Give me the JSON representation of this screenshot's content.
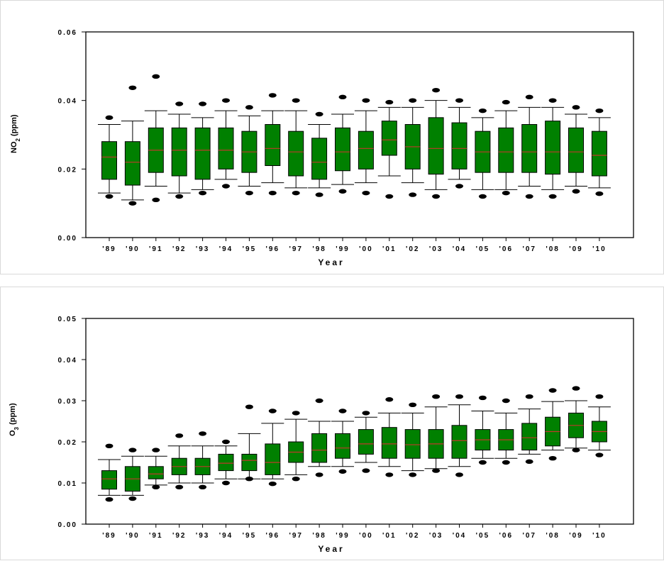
{
  "charts": [
    {
      "id": "no2",
      "ylabel_main": "NO",
      "ylabel_sub": "2",
      "ylabel_unit": " (ppm)"
    },
    {
      "id": "o3",
      "ylabel_main": "O",
      "ylabel_sub": "3",
      "ylabel_unit": " (ppm)"
    }
  ],
  "colors": {
    "box_fill": "#008000",
    "median_line": "#c0392b",
    "outlier": "#000000",
    "axis": "#000000"
  },
  "chart_data": [
    {
      "type": "box",
      "title": "",
      "xlabel": "Year",
      "ylabel": "NO2 (ppm)",
      "ylim": [
        0,
        0.06
      ],
      "yticks": [
        "0.00",
        "0.02",
        "0.04",
        "0.06"
      ],
      "categories": [
        "'89",
        "'90",
        "'91",
        "'92",
        "'93",
        "'94",
        "'95",
        "'96",
        "'97",
        "'98",
        "'99",
        "'00",
        "'01",
        "'02",
        "'03",
        "'04",
        "'05",
        "'06",
        "'07",
        "'08",
        "'09",
        "'10"
      ],
      "boxes": [
        {
          "whisker_low": 0.013,
          "q1": 0.017,
          "median": 0.0235,
          "q3": 0.028,
          "whisker_high": 0.033,
          "outliers": [
            0.035,
            0.012
          ]
        },
        {
          "whisker_low": 0.011,
          "q1": 0.0153,
          "median": 0.022,
          "q3": 0.028,
          "whisker_high": 0.034,
          "outliers": [
            0.0437,
            0.01
          ]
        },
        {
          "whisker_low": 0.015,
          "q1": 0.019,
          "median": 0.0255,
          "q3": 0.032,
          "whisker_high": 0.037,
          "outliers": [
            0.047,
            0.011
          ]
        },
        {
          "whisker_low": 0.013,
          "q1": 0.018,
          "median": 0.0255,
          "q3": 0.032,
          "whisker_high": 0.036,
          "outliers": [
            0.039,
            0.012
          ]
        },
        {
          "whisker_low": 0.014,
          "q1": 0.017,
          "median": 0.0255,
          "q3": 0.032,
          "whisker_high": 0.035,
          "outliers": [
            0.039,
            0.013
          ]
        },
        {
          "whisker_low": 0.017,
          "q1": 0.02,
          "median": 0.0255,
          "q3": 0.032,
          "whisker_high": 0.037,
          "outliers": [
            0.04,
            0.015
          ]
        },
        {
          "whisker_low": 0.015,
          "q1": 0.019,
          "median": 0.025,
          "q3": 0.031,
          "whisker_high": 0.0355,
          "outliers": [
            0.038,
            0.013
          ]
        },
        {
          "whisker_low": 0.016,
          "q1": 0.021,
          "median": 0.026,
          "q3": 0.033,
          "whisker_high": 0.037,
          "outliers": [
            0.0415,
            0.013
          ]
        },
        {
          "whisker_low": 0.0145,
          "q1": 0.018,
          "median": 0.025,
          "q3": 0.031,
          "whisker_high": 0.037,
          "outliers": [
            0.04,
            0.013
          ]
        },
        {
          "whisker_low": 0.0145,
          "q1": 0.017,
          "median": 0.022,
          "q3": 0.029,
          "whisker_high": 0.033,
          "outliers": [
            0.036,
            0.0125
          ]
        },
        {
          "whisker_low": 0.0155,
          "q1": 0.0195,
          "median": 0.025,
          "q3": 0.032,
          "whisker_high": 0.036,
          "outliers": [
            0.041,
            0.0135
          ]
        },
        {
          "whisker_low": 0.016,
          "q1": 0.02,
          "median": 0.026,
          "q3": 0.031,
          "whisker_high": 0.037,
          "outliers": [
            0.04,
            0.013
          ]
        },
        {
          "whisker_low": 0.018,
          "q1": 0.024,
          "median": 0.0285,
          "q3": 0.034,
          "whisker_high": 0.038,
          "outliers": [
            0.0395,
            0.012
          ]
        },
        {
          "whisker_low": 0.016,
          "q1": 0.02,
          "median": 0.0265,
          "q3": 0.033,
          "whisker_high": 0.038,
          "outliers": [
            0.04,
            0.0125
          ]
        },
        {
          "whisker_low": 0.014,
          "q1": 0.0185,
          "median": 0.026,
          "q3": 0.035,
          "whisker_high": 0.04,
          "outliers": [
            0.043,
            0.012
          ]
        },
        {
          "whisker_low": 0.017,
          "q1": 0.02,
          "median": 0.026,
          "q3": 0.0335,
          "whisker_high": 0.038,
          "outliers": [
            0.04,
            0.015
          ]
        },
        {
          "whisker_low": 0.014,
          "q1": 0.019,
          "median": 0.025,
          "q3": 0.031,
          "whisker_high": 0.035,
          "outliers": [
            0.037,
            0.012
          ]
        },
        {
          "whisker_low": 0.014,
          "q1": 0.019,
          "median": 0.025,
          "q3": 0.032,
          "whisker_high": 0.037,
          "outliers": [
            0.0395,
            0.013
          ]
        },
        {
          "whisker_low": 0.015,
          "q1": 0.019,
          "median": 0.025,
          "q3": 0.033,
          "whisker_high": 0.038,
          "outliers": [
            0.041,
            0.012
          ]
        },
        {
          "whisker_low": 0.014,
          "q1": 0.0185,
          "median": 0.025,
          "q3": 0.034,
          "whisker_high": 0.038,
          "outliers": [
            0.04,
            0.012
          ]
        },
        {
          "whisker_low": 0.015,
          "q1": 0.019,
          "median": 0.025,
          "q3": 0.032,
          "whisker_high": 0.036,
          "outliers": [
            0.038,
            0.0135
          ]
        },
        {
          "whisker_low": 0.0145,
          "q1": 0.018,
          "median": 0.024,
          "q3": 0.031,
          "whisker_high": 0.035,
          "outliers": [
            0.037,
            0.0128
          ]
        }
      ],
      "grid": false,
      "legend": "none"
    },
    {
      "type": "box",
      "title": "",
      "xlabel": "Year",
      "ylabel": "O3 (ppm)",
      "ylim": [
        0,
        0.05
      ],
      "yticks": [
        "0.00",
        "0.01",
        "0.02",
        "0.03",
        "0.04",
        "0.05"
      ],
      "categories": [
        "'89",
        "'90",
        "'91",
        "'92",
        "'93",
        "'94",
        "'95",
        "'96",
        "'97",
        "'98",
        "'99",
        "'00",
        "'01",
        "'02",
        "'03",
        "'04",
        "'05",
        "'06",
        "'07",
        "'08",
        "'09",
        "'10"
      ],
      "boxes": [
        {
          "whisker_low": 0.007,
          "q1": 0.0085,
          "median": 0.011,
          "q3": 0.013,
          "whisker_high": 0.0157,
          "outliers": [
            0.019,
            0.006
          ]
        },
        {
          "whisker_low": 0.007,
          "q1": 0.008,
          "median": 0.011,
          "q3": 0.014,
          "whisker_high": 0.0165,
          "outliers": [
            0.018,
            0.0062
          ]
        },
        {
          "whisker_low": 0.0095,
          "q1": 0.011,
          "median": 0.0122,
          "q3": 0.014,
          "whisker_high": 0.0165,
          "outliers": [
            0.018,
            0.009
          ]
        },
        {
          "whisker_low": 0.01,
          "q1": 0.012,
          "median": 0.014,
          "q3": 0.016,
          "whisker_high": 0.019,
          "outliers": [
            0.0215,
            0.009
          ]
        },
        {
          "whisker_low": 0.01,
          "q1": 0.012,
          "median": 0.014,
          "q3": 0.016,
          "whisker_high": 0.019,
          "outliers": [
            0.022,
            0.009
          ]
        },
        {
          "whisker_low": 0.011,
          "q1": 0.013,
          "median": 0.0148,
          "q3": 0.017,
          "whisker_high": 0.019,
          "outliers": [
            0.02,
            0.01
          ]
        },
        {
          "whisker_low": 0.011,
          "q1": 0.013,
          "median": 0.0155,
          "q3": 0.017,
          "whisker_high": 0.022,
          "outliers": [
            0.0285,
            0.011
          ]
        },
        {
          "whisker_low": 0.011,
          "q1": 0.012,
          "median": 0.015,
          "q3": 0.0195,
          "whisker_high": 0.0245,
          "outliers": [
            0.0275,
            0.0098
          ]
        },
        {
          "whisker_low": 0.012,
          "q1": 0.015,
          "median": 0.0175,
          "q3": 0.02,
          "whisker_high": 0.0255,
          "outliers": [
            0.027,
            0.011
          ]
        },
        {
          "whisker_low": 0.014,
          "q1": 0.015,
          "median": 0.018,
          "q3": 0.022,
          "whisker_high": 0.025,
          "outliers": [
            0.03,
            0.012
          ]
        },
        {
          "whisker_low": 0.014,
          "q1": 0.016,
          "median": 0.0185,
          "q3": 0.022,
          "whisker_high": 0.025,
          "outliers": [
            0.0275,
            0.0128
          ]
        },
        {
          "whisker_low": 0.015,
          "q1": 0.017,
          "median": 0.0195,
          "q3": 0.023,
          "whisker_high": 0.026,
          "outliers": [
            0.027,
            0.013
          ]
        },
        {
          "whisker_low": 0.014,
          "q1": 0.016,
          "median": 0.0195,
          "q3": 0.0235,
          "whisker_high": 0.027,
          "outliers": [
            0.0303,
            0.012
          ]
        },
        {
          "whisker_low": 0.013,
          "q1": 0.016,
          "median": 0.0193,
          "q3": 0.023,
          "whisker_high": 0.027,
          "outliers": [
            0.029,
            0.012
          ]
        },
        {
          "whisker_low": 0.0135,
          "q1": 0.016,
          "median": 0.0195,
          "q3": 0.023,
          "whisker_high": 0.0285,
          "outliers": [
            0.031,
            0.013
          ]
        },
        {
          "whisker_low": 0.014,
          "q1": 0.016,
          "median": 0.0203,
          "q3": 0.024,
          "whisker_high": 0.029,
          "outliers": [
            0.031,
            0.012
          ]
        },
        {
          "whisker_low": 0.016,
          "q1": 0.018,
          "median": 0.0205,
          "q3": 0.023,
          "whisker_high": 0.0275,
          "outliers": [
            0.0307,
            0.015
          ]
        },
        {
          "whisker_low": 0.016,
          "q1": 0.018,
          "median": 0.0205,
          "q3": 0.023,
          "whisker_high": 0.027,
          "outliers": [
            0.03,
            0.015
          ]
        },
        {
          "whisker_low": 0.017,
          "q1": 0.018,
          "median": 0.021,
          "q3": 0.0245,
          "whisker_high": 0.028,
          "outliers": [
            0.031,
            0.0152
          ]
        },
        {
          "whisker_low": 0.018,
          "q1": 0.019,
          "median": 0.0225,
          "q3": 0.026,
          "whisker_high": 0.0298,
          "outliers": [
            0.0325,
            0.016
          ]
        },
        {
          "whisker_low": 0.0185,
          "q1": 0.021,
          "median": 0.024,
          "q3": 0.027,
          "whisker_high": 0.03,
          "outliers": [
            0.033,
            0.018
          ]
        },
        {
          "whisker_low": 0.018,
          "q1": 0.02,
          "median": 0.0225,
          "q3": 0.025,
          "whisker_high": 0.0285,
          "outliers": [
            0.031,
            0.0168
          ]
        }
      ],
      "grid": false,
      "legend": "none"
    }
  ]
}
